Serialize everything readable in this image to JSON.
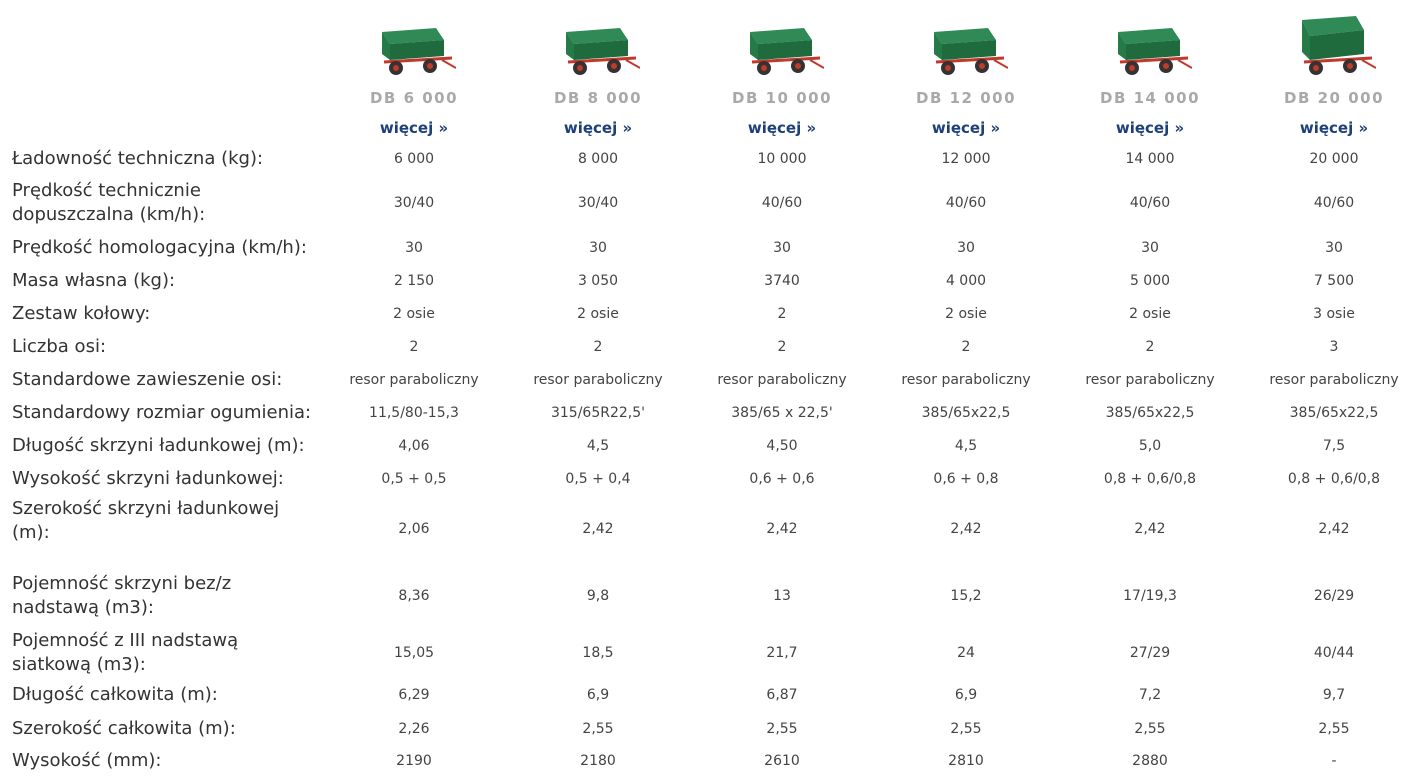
{
  "products": [
    {
      "name": "DB 6 000",
      "link": "więcej »"
    },
    {
      "name": "DB 8 000",
      "link": "więcej »"
    },
    {
      "name": "DB 10 000",
      "link": "więcej »"
    },
    {
      "name": "DB 12 000",
      "link": "więcej »"
    },
    {
      "name": "DB 14 000",
      "link": "więcej »"
    },
    {
      "name": "DB 20 000",
      "link": "więcej »"
    }
  ],
  "rows": [
    {
      "label": "Ładowność techniczna (kg):",
      "values": [
        "6 000",
        "8 000",
        "10 000",
        "12 000",
        "14 000",
        "20 000"
      ]
    },
    {
      "label": "Prędkość technicznie dopuszczalna (km/h):",
      "values": [
        "30/40",
        "30/40",
        "40/60",
        "40/60",
        "40/60",
        "40/60"
      ]
    },
    {
      "label": "Prędkość homologacyjna (km/h):",
      "values": [
        "30",
        "30",
        "30",
        "30",
        "30",
        "30"
      ]
    },
    {
      "label": "Masa własna (kg):",
      "values": [
        "2 150",
        "3 050",
        "3740",
        "4 000",
        "5 000",
        "7 500"
      ]
    },
    {
      "label": "Zestaw kołowy:",
      "values": [
        "2 osie",
        "2 osie",
        "2",
        "2 osie",
        "2 osie",
        "3 osie"
      ]
    },
    {
      "label": "Liczba osi:",
      "values": [
        "2",
        "2",
        "2",
        "2",
        "2",
        "3"
      ]
    },
    {
      "label": "Standardowe zawieszenie osi:",
      "values": [
        "resor paraboliczny",
        "resor paraboliczny",
        "resor paraboliczny",
        "resor paraboliczny",
        "resor paraboliczny",
        "resor paraboliczny"
      ]
    },
    {
      "label": "Standardowy rozmiar ogumienia:",
      "values": [
        "11,5/80-15,3",
        "315/65R22,5'",
        "385/65 x 22,5'",
        "385/65x22,5",
        "385/65x22,5",
        "385/65x22,5"
      ]
    },
    {
      "label": "Długość skrzyni ładunkowej (m):",
      "values": [
        "4,06",
        "4,5",
        "4,50",
        "4,5",
        "5,0",
        "7,5"
      ]
    },
    {
      "label": "Wysokość skrzyni ładunkowej:",
      "values": [
        "0,5 + 0,5",
        "0,5 + 0,4",
        "0,6 + 0,6",
        "0,6 + 0,8",
        "0,8 + 0,6/0,8",
        "0,8 + 0,6/0,8"
      ]
    },
    {
      "label": "Szerokość skrzyni ładunkowej (m):",
      "values": [
        "2,06",
        "2,42",
        "2,42",
        "2,42",
        "2,42",
        "2,42"
      ]
    },
    {
      "label": "Pojemność skrzyni bez/z nadstawą (m3):",
      "values": [
        "8,36",
        "9,8",
        "13",
        "15,2",
        "17/19,3",
        "26/29"
      ]
    },
    {
      "label": "Pojemność z III nadstawą siatkową (m3):",
      "values": [
        "15,05",
        "18,5",
        "21,7",
        "24",
        "27/29",
        "40/44"
      ]
    },
    {
      "label": "Długość całkowita (m):",
      "values": [
        "6,29",
        "6,9",
        "6,87",
        "6,9",
        "7,2",
        "9,7"
      ]
    },
    {
      "label": "Szerokość całkowita (m):",
      "values": [
        "2,26",
        "2,55",
        "2,55",
        "2,55",
        "2,55",
        "2,55"
      ]
    },
    {
      "label": "Wysokość (mm):",
      "values": [
        "2190",
        "2180",
        "2610",
        "2810",
        "2880",
        "-"
      ]
    }
  ]
}
